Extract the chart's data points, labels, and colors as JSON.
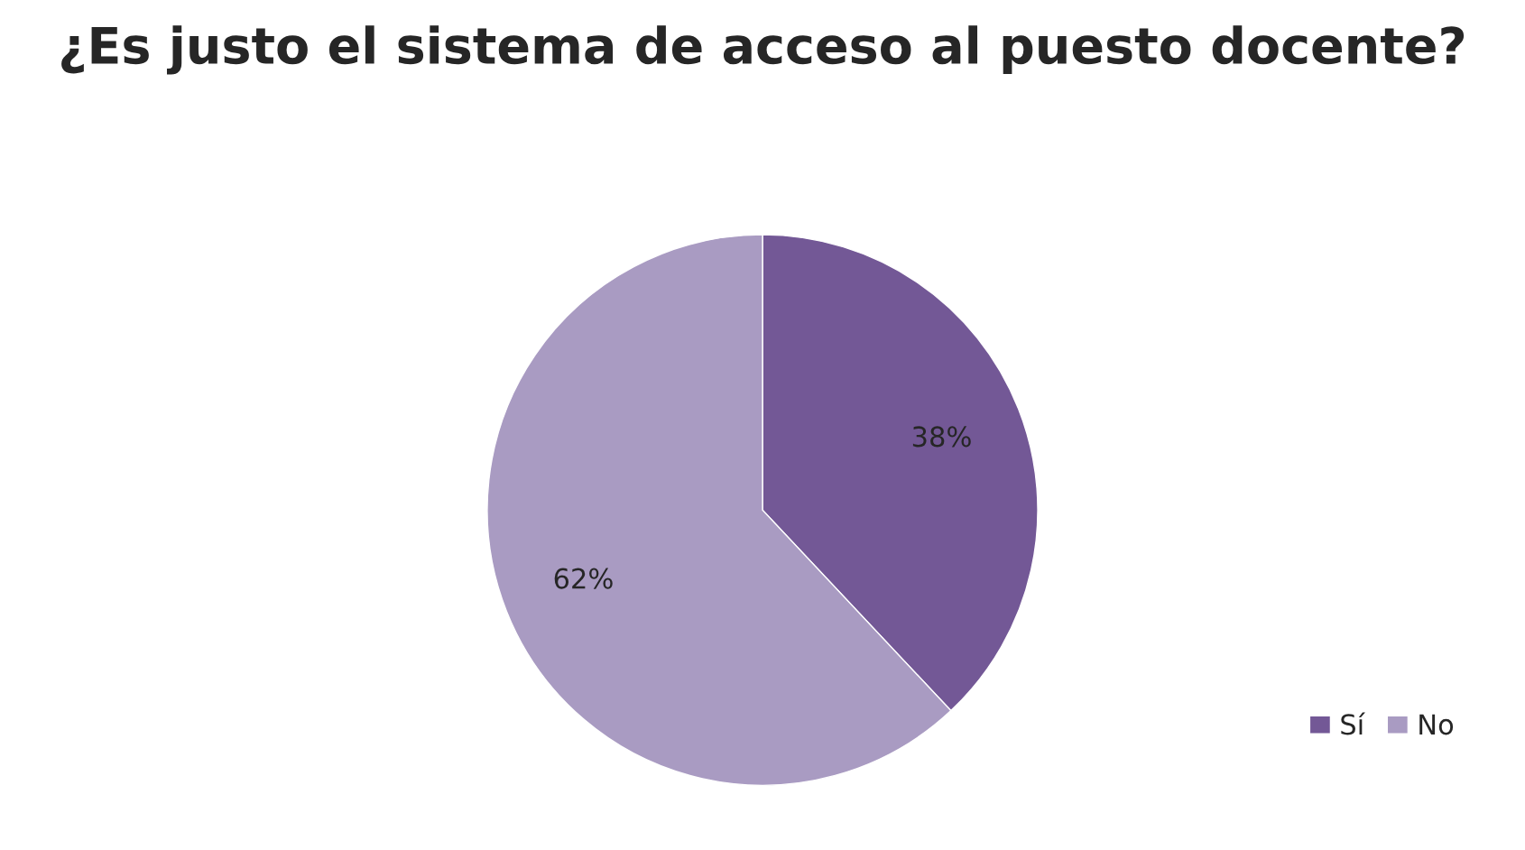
{
  "chart_data": {
    "type": "pie",
    "title": "¿Es justo el sistema de acceso al puesto docente?",
    "categories": [
      "Sí",
      "No"
    ],
    "values": [
      38,
      62
    ],
    "colors": [
      "#735896",
      "#a99bc2"
    ],
    "value_labels": [
      "38%",
      "62%"
    ],
    "legend": "bottom right"
  }
}
